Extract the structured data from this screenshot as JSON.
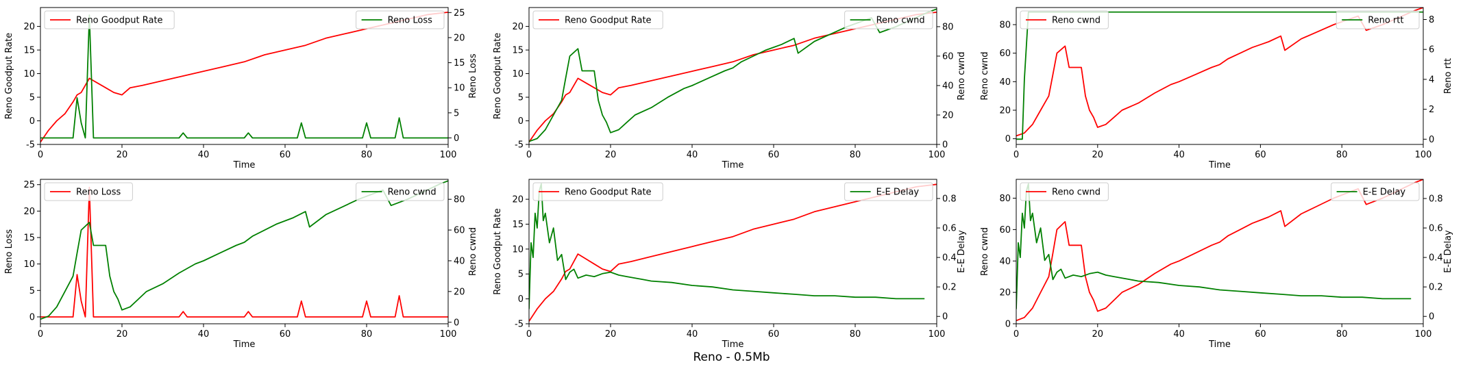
{
  "figure": {
    "suptitle": "Reno - 0.5Mb"
  },
  "colors": {
    "left_series": "#ff0000",
    "right_series": "#008000"
  },
  "chart_data": [
    {
      "type": "line",
      "xlabel": "Time",
      "xlim": [
        0,
        100
      ],
      "xticks": [
        0,
        20,
        40,
        60,
        80,
        100
      ],
      "ylabel": "Reno Goodput Rate",
      "ylim": [
        -5,
        24
      ],
      "yticks": [
        -5,
        0,
        5,
        10,
        15,
        20
      ],
      "y2label": "Reno Loss",
      "y2lim": [
        -1.3,
        26
      ],
      "y2ticks": [
        0,
        5,
        10,
        15,
        20,
        25
      ],
      "legend_left": "upper left",
      "legend_right": "upper right",
      "series": [
        {
          "name": "Reno Goodput Rate",
          "axis": "left",
          "color": "#ff0000",
          "x": [
            0,
            2,
            4,
            6,
            8,
            9,
            10,
            12,
            14,
            16,
            18,
            20,
            22,
            25,
            30,
            35,
            40,
            45,
            50,
            55,
            60,
            65,
            70,
            75,
            80,
            85,
            90,
            95,
            100
          ],
          "y": [
            -4.5,
            -2,
            0,
            1.5,
            4,
            5.5,
            6,
            9,
            8,
            7,
            6,
            5.5,
            7,
            7.5,
            8.5,
            9.5,
            10.5,
            11.5,
            12.5,
            14,
            15,
            16,
            17.5,
            18.5,
            19.5,
            20.5,
            21.5,
            22.5,
            23
          ]
        },
        {
          "name": "Reno Loss",
          "axis": "right",
          "color": "#008000",
          "x": [
            0,
            8,
            9,
            10,
            11,
            12,
            13,
            14,
            34,
            35,
            36,
            50,
            51,
            52,
            63,
            64,
            65,
            79,
            80,
            81,
            87,
            88,
            89,
            100
          ],
          "y": [
            0,
            0,
            8,
            3,
            0,
            24.5,
            0,
            0,
            0,
            1,
            0,
            0,
            1,
            0,
            0,
            3,
            0,
            0,
            3,
            0,
            0,
            4,
            0,
            0
          ]
        }
      ]
    },
    {
      "type": "line",
      "xlabel": "Time",
      "xlim": [
        0,
        100
      ],
      "xticks": [
        0,
        20,
        40,
        60,
        80,
        100
      ],
      "ylabel": "Reno Goodput Rate",
      "ylim": [
        -5,
        24
      ],
      "yticks": [
        -5,
        0,
        5,
        10,
        15,
        20
      ],
      "y2label": "Reno cwnd",
      "y2lim": [
        0,
        93
      ],
      "y2ticks": [
        0,
        20,
        40,
        60,
        80
      ],
      "legend_left": "upper left",
      "legend_right": "upper right",
      "series": [
        {
          "name": "Reno Goodput Rate",
          "axis": "left",
          "color": "#ff0000",
          "x": [
            0,
            2,
            4,
            6,
            8,
            9,
            10,
            12,
            14,
            16,
            18,
            20,
            22,
            25,
            30,
            35,
            40,
            45,
            50,
            55,
            60,
            65,
            70,
            75,
            80,
            85,
            90,
            95,
            100
          ],
          "y": [
            -4.5,
            -2,
            0,
            1.5,
            4,
            5.5,
            6,
            9,
            8,
            7,
            6,
            5.5,
            7,
            7.5,
            8.5,
            9.5,
            10.5,
            11.5,
            12.5,
            14,
            15,
            16,
            17.5,
            18.5,
            19.5,
            20.5,
            21.5,
            22.5,
            23
          ]
        },
        {
          "name": "Reno cwnd",
          "axis": "right",
          "color": "#008000",
          "x": [
            0,
            2,
            4,
            6,
            8,
            9,
            10,
            12,
            13,
            16,
            17,
            18,
            19,
            20,
            22,
            24,
            26,
            30,
            34,
            38,
            40,
            44,
            48,
            50,
            52,
            55,
            58,
            60,
            62,
            65,
            66,
            70,
            74,
            78,
            80,
            84,
            86,
            90,
            94,
            98,
            100
          ],
          "y": [
            2,
            4,
            10,
            20,
            30,
            45,
            60,
            65,
            50,
            50,
            30,
            20,
            15,
            8,
            10,
            15,
            20,
            25,
            32,
            38,
            40,
            45,
            50,
            52,
            56,
            60,
            64,
            66,
            68,
            72,
            62,
            70,
            75,
            80,
            82,
            86,
            76,
            80,
            85,
            90,
            92
          ]
        }
      ]
    },
    {
      "type": "line",
      "xlabel": "Time",
      "xlim": [
        0,
        100
      ],
      "xticks": [
        0,
        20,
        40,
        60,
        80,
        100
      ],
      "ylabel": "Reno cwnd",
      "ylim": [
        -4,
        92
      ],
      "yticks": [
        0,
        20,
        40,
        60,
        80
      ],
      "y2label": "Reno rtt",
      "y2lim": [
        -0.35,
        8.8
      ],
      "y2ticks": [
        0,
        2,
        4,
        6,
        8
      ],
      "legend_left": "upper left",
      "legend_right": "upper right",
      "series": [
        {
          "name": "Reno cwnd",
          "axis": "left",
          "color": "#ff0000",
          "x": [
            0,
            2,
            4,
            6,
            8,
            9,
            10,
            12,
            13,
            16,
            17,
            18,
            19,
            20,
            22,
            24,
            26,
            30,
            34,
            38,
            40,
            44,
            48,
            50,
            52,
            55,
            58,
            60,
            62,
            65,
            66,
            70,
            74,
            78,
            80,
            84,
            86,
            90,
            94,
            98,
            100
          ],
          "y": [
            2,
            4,
            10,
            20,
            30,
            45,
            60,
            65,
            50,
            50,
            30,
            20,
            15,
            8,
            10,
            15,
            20,
            25,
            32,
            38,
            40,
            45,
            50,
            52,
            56,
            60,
            64,
            66,
            68,
            72,
            62,
            70,
            75,
            80,
            82,
            86,
            76,
            80,
            85,
            90,
            92
          ]
        },
        {
          "name": "Reno rtt",
          "axis": "right",
          "color": "#008000",
          "x": [
            0,
            1.5,
            2,
            3,
            100
          ],
          "y": [
            0,
            0,
            4,
            8.5,
            8.5
          ]
        }
      ]
    },
    {
      "type": "line",
      "xlabel": "Time",
      "xlim": [
        0,
        100
      ],
      "xticks": [
        0,
        20,
        40,
        60,
        80,
        100
      ],
      "ylabel": "Reno Loss",
      "ylim": [
        -1.3,
        26
      ],
      "yticks": [
        0,
        5,
        10,
        15,
        20,
        25
      ],
      "y2label": "Reno cwnd",
      "y2lim": [
        -1,
        93
      ],
      "y2ticks": [
        0,
        20,
        40,
        60,
        80
      ],
      "legend_left": "upper left",
      "legend_right": "upper right",
      "series": [
        {
          "name": "Reno Loss",
          "axis": "left",
          "color": "#ff0000",
          "x": [
            0,
            8,
            9,
            10,
            11,
            12,
            13,
            14,
            34,
            35,
            36,
            50,
            51,
            52,
            63,
            64,
            65,
            79,
            80,
            81,
            87,
            88,
            89,
            100
          ],
          "y": [
            0,
            0,
            8,
            3,
            0,
            24.5,
            0,
            0,
            0,
            1,
            0,
            0,
            1,
            0,
            0,
            3,
            0,
            0,
            3,
            0,
            0,
            4,
            0,
            0
          ]
        },
        {
          "name": "Reno cwnd",
          "axis": "right",
          "color": "#008000",
          "x": [
            0,
            2,
            4,
            6,
            8,
            9,
            10,
            12,
            13,
            16,
            17,
            18,
            19,
            20,
            22,
            24,
            26,
            30,
            34,
            38,
            40,
            44,
            48,
            50,
            52,
            55,
            58,
            60,
            62,
            65,
            66,
            70,
            74,
            78,
            80,
            84,
            86,
            90,
            94,
            98,
            100
          ],
          "y": [
            2,
            4,
            10,
            20,
            30,
            45,
            60,
            65,
            50,
            50,
            30,
            20,
            15,
            8,
            10,
            15,
            20,
            25,
            32,
            38,
            40,
            45,
            50,
            52,
            56,
            60,
            64,
            66,
            68,
            72,
            62,
            70,
            75,
            80,
            82,
            86,
            76,
            80,
            85,
            90,
            92
          ]
        }
      ]
    },
    {
      "type": "line",
      "xlabel": "Time",
      "xlim": [
        0,
        100
      ],
      "xticks": [
        0,
        20,
        40,
        60,
        80,
        100
      ],
      "ylabel": "Reno Goodput Rate",
      "ylim": [
        -5,
        24
      ],
      "yticks": [
        -5,
        0,
        5,
        10,
        15,
        20
      ],
      "y2label": "E-E Delay",
      "y2lim": [
        -0.05,
        0.93
      ],
      "y2ticks": [
        0.0,
        0.2,
        0.4,
        0.6,
        0.8
      ],
      "legend_left": "upper left",
      "legend_right": "upper right",
      "series": [
        {
          "name": "Reno Goodput Rate",
          "axis": "left",
          "color": "#ff0000",
          "x": [
            0,
            2,
            4,
            6,
            8,
            9,
            10,
            12,
            14,
            16,
            18,
            20,
            22,
            25,
            30,
            35,
            40,
            45,
            50,
            55,
            60,
            65,
            70,
            75,
            80,
            85,
            90,
            95,
            100
          ],
          "y": [
            -4.5,
            -2,
            0,
            1.5,
            4,
            5.5,
            6,
            9,
            8,
            7,
            6,
            5.5,
            7,
            7.5,
            8.5,
            9.5,
            10.5,
            11.5,
            12.5,
            14,
            15,
            16,
            17.5,
            18.5,
            19.5,
            20.5,
            21.5,
            22.5,
            23
          ]
        },
        {
          "name": "E-E Delay",
          "axis": "right",
          "color": "#008000",
          "x": [
            0,
            0.5,
            1,
            1.5,
            2,
            2.5,
            3,
            3.5,
            4,
            5,
            6,
            7,
            8,
            9,
            10,
            11,
            12,
            14,
            16,
            18,
            20,
            22,
            24,
            26,
            28,
            30,
            35,
            40,
            45,
            50,
            55,
            60,
            65,
            70,
            75,
            80,
            85,
            90,
            95,
            97
          ],
          "y": [
            0.05,
            0.5,
            0.4,
            0.7,
            0.6,
            0.85,
            0.9,
            0.65,
            0.7,
            0.5,
            0.6,
            0.38,
            0.42,
            0.25,
            0.3,
            0.32,
            0.26,
            0.28,
            0.27,
            0.29,
            0.3,
            0.28,
            0.27,
            0.26,
            0.25,
            0.24,
            0.23,
            0.21,
            0.2,
            0.18,
            0.17,
            0.16,
            0.15,
            0.14,
            0.14,
            0.13,
            0.13,
            0.12,
            0.12,
            0.12
          ]
        }
      ]
    },
    {
      "type": "line",
      "xlabel": "Time",
      "xlim": [
        0,
        100
      ],
      "xticks": [
        0,
        20,
        40,
        60,
        80,
        100
      ],
      "ylabel": "Reno cwnd",
      "ylim": [
        0,
        92
      ],
      "yticks": [
        0,
        20,
        40,
        60,
        80
      ],
      "y2label": "E-E Delay",
      "y2lim": [
        -0.05,
        0.93
      ],
      "y2ticks": [
        0.0,
        0.2,
        0.4,
        0.6,
        0.8
      ],
      "legend_left": "upper left",
      "legend_right": "upper right",
      "series": [
        {
          "name": "Reno cwnd",
          "axis": "left",
          "color": "#ff0000",
          "x": [
            0,
            2,
            4,
            6,
            8,
            9,
            10,
            12,
            13,
            16,
            17,
            18,
            19,
            20,
            22,
            24,
            26,
            30,
            34,
            38,
            40,
            44,
            48,
            50,
            52,
            55,
            58,
            60,
            62,
            65,
            66,
            70,
            74,
            78,
            80,
            84,
            86,
            90,
            94,
            98,
            100
          ],
          "y": [
            2,
            4,
            10,
            20,
            30,
            45,
            60,
            65,
            50,
            50,
            30,
            20,
            15,
            8,
            10,
            15,
            20,
            25,
            32,
            38,
            40,
            45,
            50,
            52,
            56,
            60,
            64,
            66,
            68,
            72,
            62,
            70,
            75,
            80,
            82,
            86,
            76,
            80,
            85,
            90,
            92
          ]
        },
        {
          "name": "E-E Delay",
          "axis": "right",
          "color": "#008000",
          "x": [
            0,
            0.5,
            1,
            1.5,
            2,
            2.5,
            3,
            3.5,
            4,
            5,
            6,
            7,
            8,
            9,
            10,
            11,
            12,
            14,
            16,
            18,
            20,
            22,
            24,
            26,
            28,
            30,
            35,
            40,
            45,
            50,
            55,
            60,
            65,
            70,
            75,
            80,
            85,
            90,
            95,
            97
          ],
          "y": [
            0.05,
            0.5,
            0.4,
            0.7,
            0.6,
            0.85,
            0.9,
            0.65,
            0.7,
            0.5,
            0.6,
            0.38,
            0.42,
            0.25,
            0.3,
            0.32,
            0.26,
            0.28,
            0.27,
            0.29,
            0.3,
            0.28,
            0.27,
            0.26,
            0.25,
            0.24,
            0.23,
            0.21,
            0.2,
            0.18,
            0.17,
            0.16,
            0.15,
            0.14,
            0.14,
            0.13,
            0.13,
            0.12,
            0.12,
            0.12
          ]
        }
      ]
    }
  ]
}
